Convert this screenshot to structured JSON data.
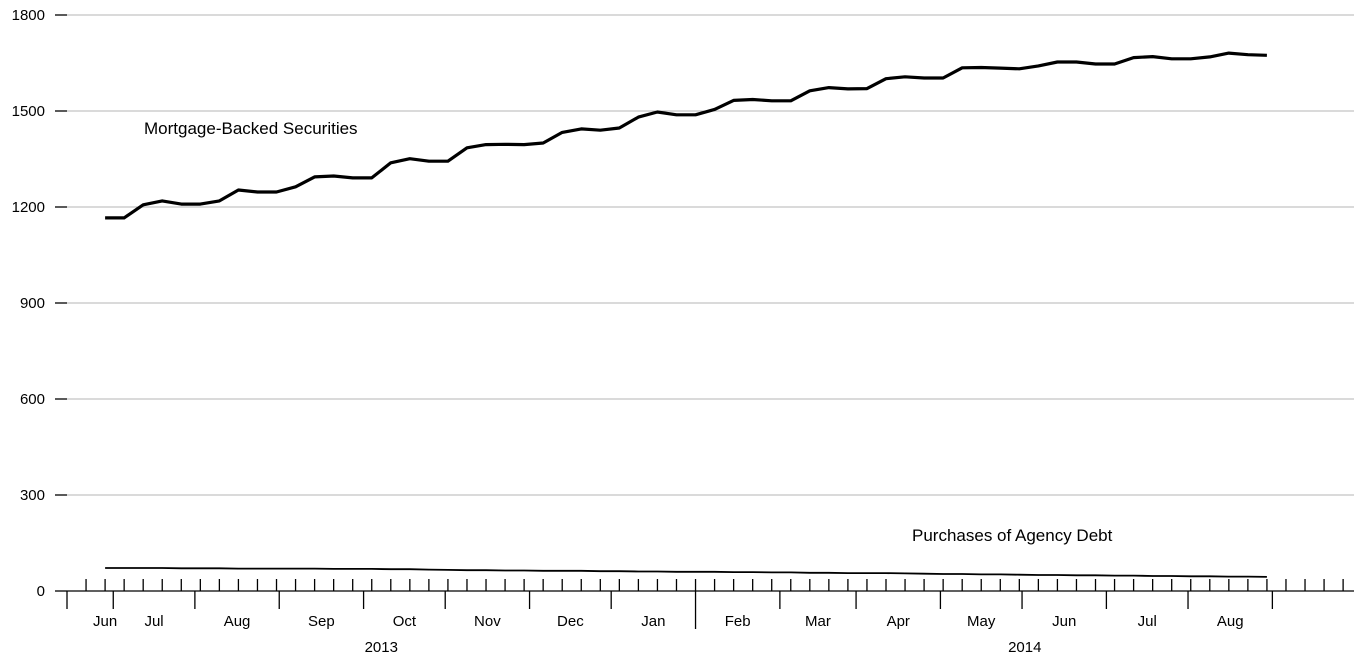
{
  "chart_data": {
    "type": "line",
    "title": "",
    "xlabel": "",
    "ylabel": "",
    "ylim": [
      0,
      1800
    ],
    "yticks": [
      0,
      300,
      600,
      900,
      1200,
      1500,
      1800
    ],
    "grid": true,
    "x_months": [
      "Jun",
      "Jul",
      "Aug",
      "Sep",
      "Oct",
      "Nov",
      "Dec",
      "Jan",
      "Feb",
      "Mar",
      "Apr",
      "May",
      "Jun",
      "Jul",
      "Aug"
    ],
    "x_years": [
      {
        "label": "2013",
        "months": [
          "Jun",
          "Jul",
          "Aug",
          "Sep",
          "Oct",
          "Nov",
          "Dec"
        ]
      },
      {
        "label": "2014",
        "months": [
          "Jan",
          "Feb",
          "Mar",
          "Apr",
          "May",
          "Jun",
          "Jul",
          "Aug"
        ]
      }
    ],
    "x": [
      "2013-05-29",
      "2013-06-05",
      "2013-06-12",
      "2013-06-19",
      "2013-06-26",
      "2013-07-03",
      "2013-07-10",
      "2013-07-17",
      "2013-07-24",
      "2013-07-31",
      "2013-08-07",
      "2013-08-14",
      "2013-08-21",
      "2013-08-28",
      "2013-09-04",
      "2013-09-11",
      "2013-09-18",
      "2013-09-25",
      "2013-10-02",
      "2013-10-09",
      "2013-10-16",
      "2013-10-23",
      "2013-10-30",
      "2013-11-06",
      "2013-11-13",
      "2013-11-20",
      "2013-11-27",
      "2013-12-04",
      "2013-12-11",
      "2013-12-18",
      "2013-12-25",
      "2014-01-01",
      "2014-01-08",
      "2014-01-15",
      "2014-01-22",
      "2014-01-29",
      "2014-02-05",
      "2014-02-12",
      "2014-02-19",
      "2014-02-26",
      "2014-03-05",
      "2014-03-12",
      "2014-03-19",
      "2014-03-26",
      "2014-04-02",
      "2014-04-09",
      "2014-04-16",
      "2014-04-23",
      "2014-04-30",
      "2014-05-07",
      "2014-05-14",
      "2014-05-21",
      "2014-05-28",
      "2014-06-04",
      "2014-06-11",
      "2014-06-18",
      "2014-06-25",
      "2014-07-02",
      "2014-07-09",
      "2014-07-16",
      "2014-07-23",
      "2014-07-30"
    ],
    "series": [
      {
        "name": "Mortgage-Backed Securities",
        "values": [
          1166,
          1166,
          1207,
          1219,
          1209,
          1209,
          1219,
          1253,
          1247,
          1247,
          1263,
          1294,
          1297,
          1291,
          1291,
          1338,
          1351,
          1343,
          1343,
          1385,
          1395,
          1396,
          1395,
          1400,
          1433,
          1444,
          1440,
          1447,
          1481,
          1497,
          1488,
          1488,
          1505,
          1533,
          1536,
          1532,
          1532,
          1563,
          1573,
          1569,
          1570,
          1601,
          1607,
          1603,
          1603,
          1635,
          1636,
          1634,
          1632,
          1641,
          1653,
          1653,
          1647,
          1647,
          1667,
          1670,
          1663,
          1663,
          1669,
          1681,
          1676,
          1674
        ]
      },
      {
        "name": "Purchases of Agency Debt",
        "values": [
          72,
          72,
          72,
          72,
          71,
          71,
          71,
          70,
          70,
          70,
          70,
          70,
          69,
          69,
          69,
          68,
          68,
          67,
          66,
          65,
          65,
          64,
          64,
          63,
          63,
          63,
          62,
          62,
          61,
          61,
          60,
          60,
          60,
          59,
          59,
          58,
          58,
          57,
          57,
          56,
          56,
          56,
          55,
          54,
          53,
          53,
          52,
          52,
          51,
          50,
          50,
          49,
          49,
          48,
          48,
          47,
          47,
          46,
          46,
          45,
          45,
          44
        ]
      }
    ]
  }
}
